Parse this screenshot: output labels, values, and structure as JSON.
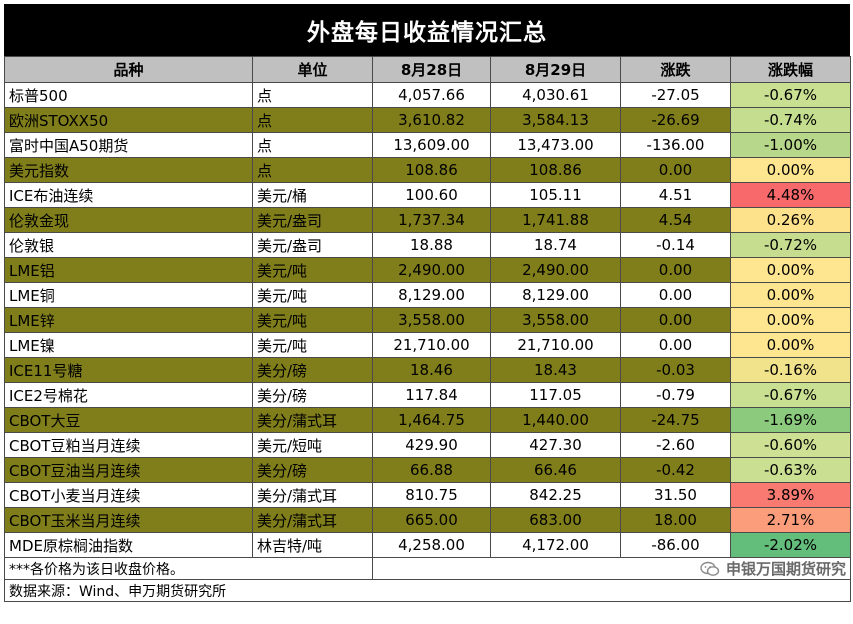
{
  "title": "外盘每日收益情况汇总",
  "headers": [
    "品种",
    "单位",
    "8月28日",
    "8月29日",
    "涨跌",
    "涨跌幅"
  ],
  "rows": [
    {
      "name": "标普500",
      "unit": "点",
      "d1": "4,057.66",
      "d2": "4,030.61",
      "chg": "-27.05",
      "pct": "-0.67%",
      "pct_color": "#c9df92"
    },
    {
      "name": "欧洲STOXX50",
      "unit": "点",
      "d1": "3,610.82",
      "d2": "3,584.13",
      "chg": "-26.69",
      "pct": "-0.74%",
      "pct_color": "#c5dd8f"
    },
    {
      "name": "富时中国A50期货",
      "unit": "点",
      "d1": "13,609.00",
      "d2": "13,473.00",
      "chg": "-136.00",
      "pct": "-1.00%",
      "pct_color": "#b7d88a"
    },
    {
      "name": "美元指数",
      "unit": "点",
      "d1": "108.86",
      "d2": "108.86",
      "chg": "0.00",
      "pct": "0.00%",
      "pct_color": "#fde68f"
    },
    {
      "name": "ICE布油连续",
      "unit": "美元/桶",
      "d1": "100.60",
      "d2": "105.11",
      "chg": "4.51",
      "pct": "4.48%",
      "pct_color": "#f8696b"
    },
    {
      "name": "伦敦金现",
      "unit": "美元/盎司",
      "d1": "1,737.34",
      "d2": "1,741.88",
      "chg": "4.54",
      "pct": "0.26%",
      "pct_color": "#fde28b"
    },
    {
      "name": "伦敦银",
      "unit": "美元/盎司",
      "d1": "18.88",
      "d2": "18.74",
      "chg": "-0.14",
      "pct": "-0.72%",
      "pct_color": "#c6dd90"
    },
    {
      "name": "LME铝",
      "unit": "美元/吨",
      "d1": "2,490.00",
      "d2": "2,490.00",
      "chg": "0.00",
      "pct": "0.00%",
      "pct_color": "#fde68f"
    },
    {
      "name": "LME铜",
      "unit": "美元/吨",
      "d1": "8,129.00",
      "d2": "8,129.00",
      "chg": "0.00",
      "pct": "0.00%",
      "pct_color": "#fde68f"
    },
    {
      "name": "LME锌",
      "unit": "美元/吨",
      "d1": "3,558.00",
      "d2": "3,558.00",
      "chg": "0.00",
      "pct": "0.00%",
      "pct_color": "#fde68f"
    },
    {
      "name": "LME镍",
      "unit": "美元/吨",
      "d1": "21,710.00",
      "d2": "21,710.00",
      "chg": "0.00",
      "pct": "0.00%",
      "pct_color": "#fde68f"
    },
    {
      "name": "ICE11号糖",
      "unit": "美分/磅",
      "d1": "18.46",
      "d2": "18.43",
      "chg": "-0.03",
      "pct": "-0.16%",
      "pct_color": "#f1e28c"
    },
    {
      "name": "ICE2号棉花",
      "unit": "美分/磅",
      "d1": "117.84",
      "d2": "117.05",
      "chg": "-0.79",
      "pct": "-0.67%",
      "pct_color": "#c9df92"
    },
    {
      "name": "CBOT大豆",
      "unit": "美分/蒲式耳",
      "d1": "1,464.75",
      "d2": "1,440.00",
      "chg": "-24.75",
      "pct": "-1.69%",
      "pct_color": "#8ccb7e"
    },
    {
      "name": "CBOT豆粕当月连续",
      "unit": "美元/短吨",
      "d1": "429.90",
      "d2": "427.30",
      "chg": "-2.60",
      "pct": "-0.60%",
      "pct_color": "#cde094"
    },
    {
      "name": "CBOT豆油当月连续",
      "unit": "美分/磅",
      "d1": "66.88",
      "d2": "66.46",
      "chg": "-0.42",
      "pct": "-0.63%",
      "pct_color": "#cbdf93"
    },
    {
      "name": "CBOT小麦当月连续",
      "unit": "美分/蒲式耳",
      "d1": "810.75",
      "d2": "842.25",
      "chg": "31.50",
      "pct": "3.89%",
      "pct_color": "#f97a71"
    },
    {
      "name": "CBOT玉米当月连续",
      "unit": "美分/蒲式耳",
      "d1": "665.00",
      "d2": "683.00",
      "chg": "18.00",
      "pct": "2.71%",
      "pct_color": "#fb9d7b"
    },
    {
      "name": "MDE原棕榈油指数",
      "unit": "林吉特/吨",
      "d1": "4,258.00",
      "d2": "4,172.00",
      "chg": "-86.00",
      "pct": "-2.02%",
      "pct_color": "#63be7b"
    }
  ],
  "footer": {
    "note": "***各价格为该日收盘价格。",
    "brand": "申银万国期货研究",
    "source": "数据来源：Wind、申万期货研究所"
  },
  "colors": {
    "shade": "#807e1a",
    "header_bg": "#c0c0c0",
    "title_bg": "#000000"
  }
}
